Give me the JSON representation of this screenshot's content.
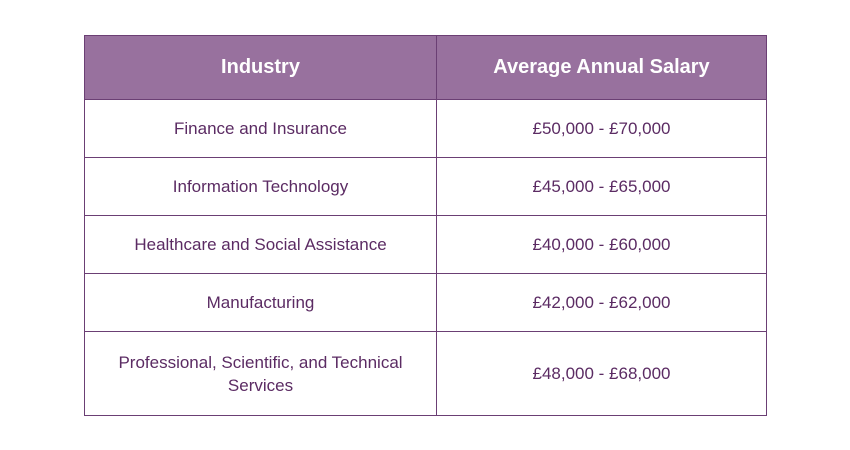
{
  "table": {
    "headers": {
      "industry": "Industry",
      "salary": "Average Annual Salary"
    },
    "rows": [
      {
        "industry": "Finance and Insurance",
        "salary": "£50,000 - £70,000"
      },
      {
        "industry": "Information Technology",
        "salary": "£45,000 - £65,000"
      },
      {
        "industry": "Healthcare and Social Assistance",
        "salary": "£40,000 - £60,000"
      },
      {
        "industry": "Manufacturing",
        "salary": "£42,000 - £62,000"
      },
      {
        "industry": "Professional, Scientific, and Technical Services",
        "salary": "£48,000 - £68,000"
      }
    ]
  },
  "colors": {
    "header_background": "#98719e",
    "header_text": "#ffffff",
    "body_text": "#5b2b63",
    "border": "#6b3f74"
  }
}
